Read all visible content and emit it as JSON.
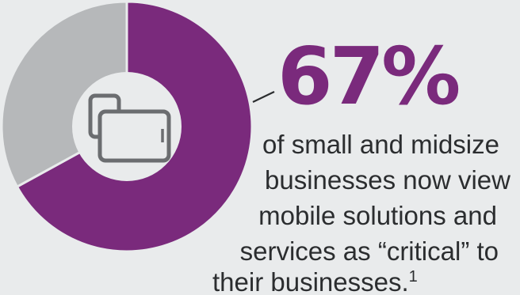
{
  "chart_data": {
    "type": "pie",
    "title": "",
    "slices": [
      {
        "name": "",
        "value": 67,
        "color": "#7a2a7c"
      },
      {
        "name": "",
        "value": 33,
        "color": "#b6b8ba"
      }
    ]
  },
  "callout": {
    "percent": "67%",
    "color": "#7a2a7c",
    "lines": [
      "of small and midsize",
      "businesses now view",
      "mobile solutions and",
      "services as “critical” to",
      "their businesses."
    ],
    "footnote": "1"
  },
  "icons": {
    "center": "mobile-devices-icon"
  }
}
